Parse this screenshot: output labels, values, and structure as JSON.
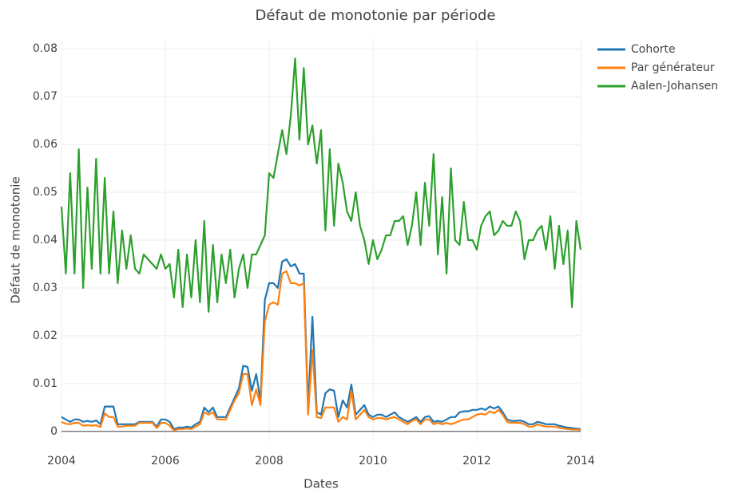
{
  "chart_data": {
    "type": "line",
    "title": "Défaut de monotonie par période",
    "x_label": "Dates",
    "y_label": "Défaut de monotonie",
    "xlim": [
      2004,
      2014
    ],
    "xticks": [
      2004,
      2006,
      2008,
      2010,
      2012,
      2014
    ],
    "ylim": [
      -0.0022,
      0.0822
    ],
    "yticks": [
      0,
      0.01,
      0.02,
      0.03,
      0.04,
      0.05,
      0.06,
      0.07,
      0.08
    ],
    "grid": true,
    "legend": "top-right",
    "x": [
      2004,
      2004.083,
      2004.167,
      2004.25,
      2004.333,
      2004.417,
      2004.5,
      2004.583,
      2004.667,
      2004.75,
      2004.833,
      2004.917,
      2005,
      2005.083,
      2005.167,
      2005.25,
      2005.333,
      2005.417,
      2005.5,
      2005.583,
      2005.667,
      2005.75,
      2005.833,
      2005.917,
      2006,
      2006.083,
      2006.167,
      2006.25,
      2006.333,
      2006.417,
      2006.5,
      2006.583,
      2006.667,
      2006.75,
      2006.833,
      2006.917,
      2007,
      2007.083,
      2007.167,
      2007.25,
      2007.333,
      2007.417,
      2007.5,
      2007.583,
      2007.667,
      2007.75,
      2007.833,
      2007.917,
      2008,
      2008.083,
      2008.167,
      2008.25,
      2008.333,
      2008.417,
      2008.5,
      2008.583,
      2008.667,
      2008.75,
      2008.833,
      2008.917,
      2009,
      2009.083,
      2009.167,
      2009.25,
      2009.333,
      2009.417,
      2009.5,
      2009.583,
      2009.667,
      2009.75,
      2009.833,
      2009.917,
      2010,
      2010.083,
      2010.167,
      2010.25,
      2010.333,
      2010.417,
      2010.5,
      2010.583,
      2010.667,
      2010.75,
      2010.833,
      2010.917,
      2011,
      2011.083,
      2011.167,
      2011.25,
      2011.333,
      2011.417,
      2011.5,
      2011.583,
      2011.667,
      2011.75,
      2011.833,
      2011.917,
      2012,
      2012.083,
      2012.167,
      2012.25,
      2012.333,
      2012.417,
      2012.5,
      2012.583,
      2012.667,
      2012.75,
      2012.833,
      2012.917,
      2013,
      2013.083,
      2013.167,
      2013.25,
      2013.333,
      2013.417,
      2013.5,
      2013.583,
      2013.667,
      2013.75,
      2013.833,
      2013.917,
      2014
    ],
    "series": [
      {
        "name": "Cohorte",
        "color": "#1f77b4",
        "values": [
          0.003,
          0.0025,
          0.002,
          0.0025,
          0.0025,
          0.002,
          0.0022,
          0.002,
          0.0023,
          0.0015,
          0.0052,
          0.0052,
          0.0052,
          0.0015,
          0.0015,
          0.0015,
          0.0015,
          0.0015,
          0.002,
          0.002,
          0.002,
          0.002,
          0.001,
          0.0025,
          0.0025,
          0.002,
          0.0005,
          0.0008,
          0.0008,
          0.001,
          0.0008,
          0.0015,
          0.002,
          0.005,
          0.004,
          0.005,
          0.003,
          0.003,
          0.003,
          0.005,
          0.007,
          0.009,
          0.0137,
          0.0135,
          0.0085,
          0.012,
          0.0065,
          0.0275,
          0.031,
          0.031,
          0.03,
          0.0355,
          0.036,
          0.0345,
          0.035,
          0.033,
          0.033,
          0.005,
          0.024,
          0.004,
          0.0035,
          0.008,
          0.0088,
          0.0085,
          0.003,
          0.0065,
          0.005,
          0.0098,
          0.0035,
          0.0045,
          0.0055,
          0.0035,
          0.003,
          0.0035,
          0.0035,
          0.003,
          0.0035,
          0.004,
          0.003,
          0.0025,
          0.002,
          0.0025,
          0.003,
          0.002,
          0.003,
          0.0032,
          0.002,
          0.0022,
          0.002,
          0.0025,
          0.003,
          0.003,
          0.004,
          0.0042,
          0.0042,
          0.0045,
          0.0045,
          0.0048,
          0.0045,
          0.0052,
          0.0048,
          0.0052,
          0.004,
          0.0025,
          0.0022,
          0.0022,
          0.0023,
          0.002,
          0.0015,
          0.0015,
          0.002,
          0.0018,
          0.0015,
          0.0015,
          0.0015,
          0.0012,
          0.001,
          0.0008,
          0.0007,
          0.0006,
          0.0005
        ]
      },
      {
        "name": "Par générateur",
        "color": "#ff7f0e",
        "values": [
          0.002,
          0.0016,
          0.0015,
          0.0018,
          0.0018,
          0.0012,
          0.0013,
          0.0012,
          0.0013,
          0.0009,
          0.0038,
          0.003,
          0.003,
          0.001,
          0.001,
          0.0012,
          0.0012,
          0.0012,
          0.0018,
          0.0018,
          0.0018,
          0.0018,
          0.0007,
          0.0018,
          0.0018,
          0.0012,
          0.0002,
          0.0005,
          0.0005,
          0.0006,
          0.0005,
          0.001,
          0.0015,
          0.004,
          0.0035,
          0.004,
          0.0025,
          0.0025,
          0.0025,
          0.0045,
          0.0065,
          0.008,
          0.012,
          0.012,
          0.0055,
          0.0088,
          0.0055,
          0.023,
          0.0265,
          0.027,
          0.0265,
          0.033,
          0.0335,
          0.031,
          0.031,
          0.0305,
          0.031,
          0.0035,
          0.017,
          0.003,
          0.0028,
          0.005,
          0.005,
          0.005,
          0.002,
          0.003,
          0.0025,
          0.0085,
          0.0025,
          0.0035,
          0.0045,
          0.003,
          0.0025,
          0.0028,
          0.0028,
          0.0025,
          0.0028,
          0.003,
          0.0025,
          0.002,
          0.0015,
          0.0022,
          0.0025,
          0.0015,
          0.0025,
          0.0025,
          0.0015,
          0.0018,
          0.0015,
          0.0018,
          0.0015,
          0.0018,
          0.0022,
          0.0025,
          0.0025,
          0.003,
          0.0035,
          0.0037,
          0.0035,
          0.0042,
          0.0038,
          0.0045,
          0.0035,
          0.002,
          0.0018,
          0.0018,
          0.0018,
          0.0015,
          0.001,
          0.001,
          0.0015,
          0.0012,
          0.001,
          0.001,
          0.001,
          0.0008,
          0.0006,
          0.0005,
          0.0004,
          0.0004,
          0.0003
        ]
      },
      {
        "name": "Aalen-Johansen",
        "color": "#2ca02c",
        "values": [
          0.047,
          0.033,
          0.054,
          0.033,
          0.059,
          0.03,
          0.051,
          0.034,
          0.057,
          0.033,
          0.053,
          0.033,
          0.046,
          0.031,
          0.042,
          0.034,
          0.041,
          0.034,
          0.033,
          0.037,
          0.036,
          0.035,
          0.034,
          0.037,
          0.034,
          0.035,
          0.028,
          0.038,
          0.026,
          0.037,
          0.028,
          0.04,
          0.027,
          0.044,
          0.025,
          0.039,
          0.027,
          0.037,
          0.031,
          0.038,
          0.028,
          0.034,
          0.037,
          0.03,
          0.037,
          0.037,
          0.039,
          0.041,
          0.054,
          0.053,
          0.058,
          0.063,
          0.058,
          0.066,
          0.078,
          0.061,
          0.076,
          0.06,
          0.064,
          0.056,
          0.063,
          0.042,
          0.059,
          0.043,
          0.056,
          0.052,
          0.046,
          0.044,
          0.05,
          0.043,
          0.04,
          0.035,
          0.04,
          0.036,
          0.038,
          0.041,
          0.041,
          0.044,
          0.044,
          0.045,
          0.039,
          0.043,
          0.05,
          0.039,
          0.052,
          0.043,
          0.058,
          0.037,
          0.049,
          0.033,
          0.055,
          0.04,
          0.039,
          0.048,
          0.04,
          0.04,
          0.038,
          0.043,
          0.045,
          0.046,
          0.041,
          0.042,
          0.044,
          0.043,
          0.043,
          0.046,
          0.044,
          0.036,
          0.04,
          0.04,
          0.042,
          0.043,
          0.038,
          0.045,
          0.034,
          0.043,
          0.035,
          0.042,
          0.026,
          0.044,
          0.038
        ]
      }
    ]
  }
}
